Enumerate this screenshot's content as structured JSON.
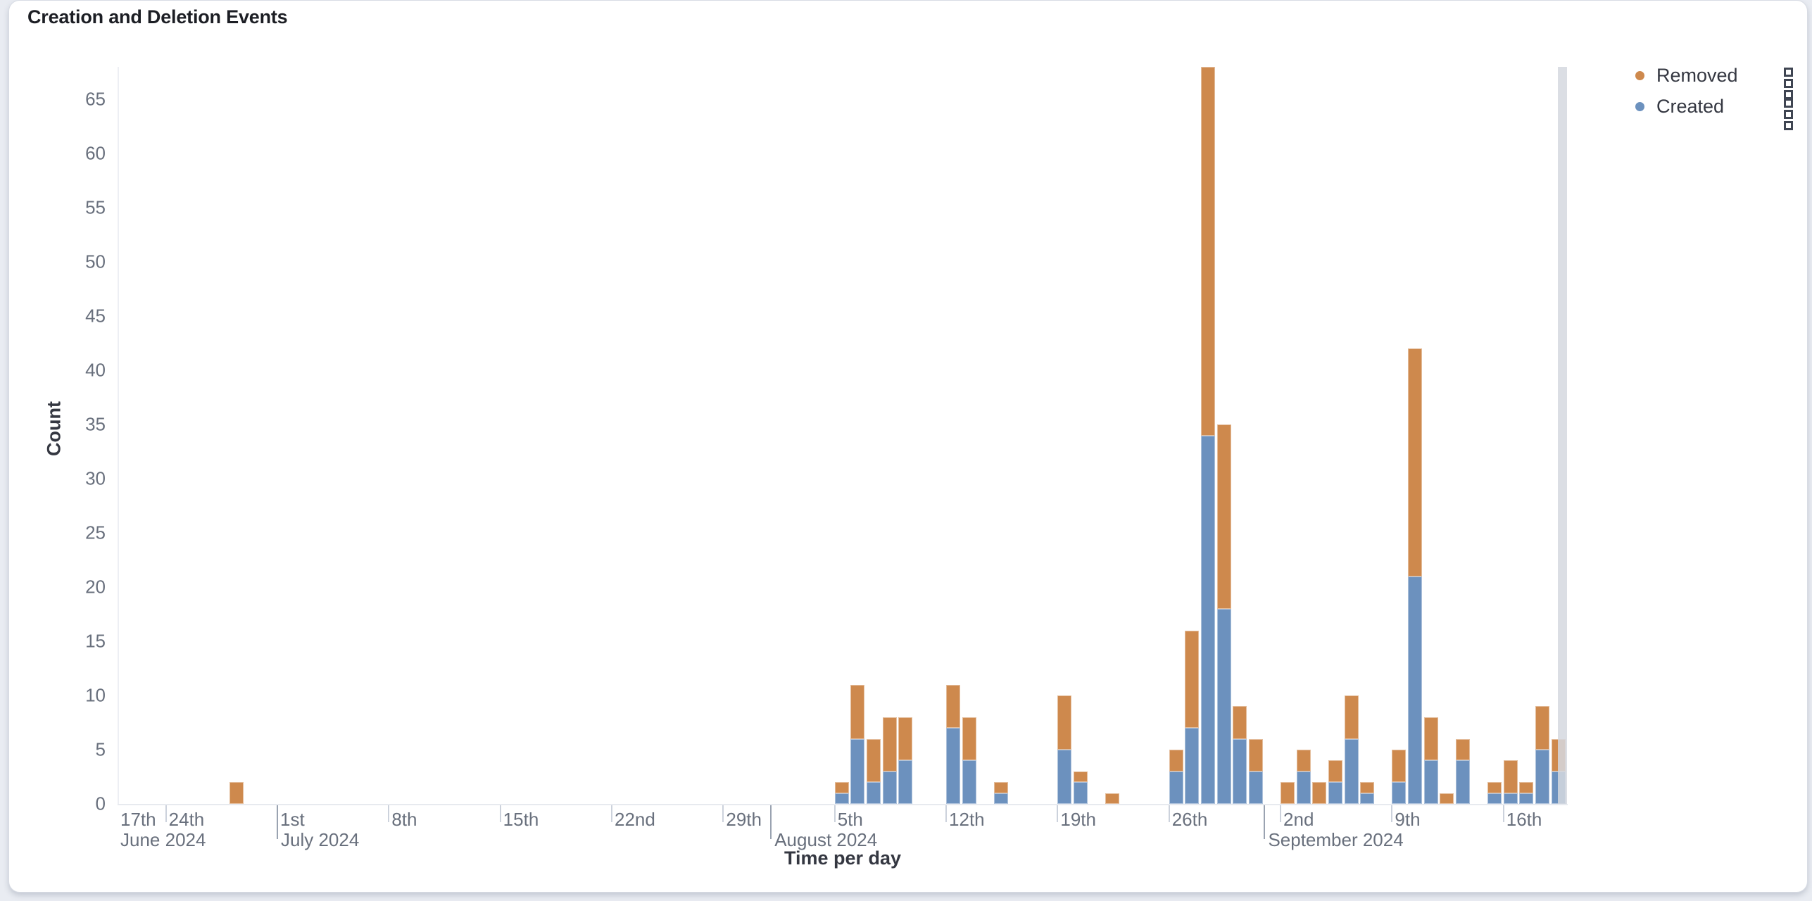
{
  "panel": {
    "title": "Creation and Deletion Events"
  },
  "legend": {
    "position": "right",
    "items": [
      {
        "label": "Removed",
        "color": "#CE894D"
      },
      {
        "label": "Created",
        "color": "#6C91BE"
      }
    ],
    "action_icon": "vertical-dots-icon"
  },
  "chart_data": {
    "type": "bar",
    "stacked": true,
    "title": "Creation and Deletion Events",
    "xlabel": "Time per day",
    "ylabel": "Count",
    "ylim": [
      0,
      68
    ],
    "y_ticks": [
      0,
      5,
      10,
      15,
      20,
      25,
      30,
      35,
      40,
      45,
      50,
      55,
      60,
      65
    ],
    "grid": false,
    "legend_position": "right",
    "series_order_bottom_to_top": [
      "Created",
      "Removed"
    ],
    "series_colors": {
      "Created": "#6C91BE",
      "Removed": "#CE894D"
    },
    "bars": [
      {
        "date": "2024-06-28",
        "created": 0,
        "removed": 2
      },
      {
        "date": "2024-08-05",
        "created": 1,
        "removed": 1
      },
      {
        "date": "2024-08-06",
        "created": 6,
        "removed": 5
      },
      {
        "date": "2024-08-07",
        "created": 2,
        "removed": 4
      },
      {
        "date": "2024-08-08",
        "created": 3,
        "removed": 5
      },
      {
        "date": "2024-08-09",
        "created": 4,
        "removed": 4
      },
      {
        "date": "2024-08-12",
        "created": 7,
        "removed": 4
      },
      {
        "date": "2024-08-13",
        "created": 4,
        "removed": 4
      },
      {
        "date": "2024-08-15",
        "created": 1,
        "removed": 1
      },
      {
        "date": "2024-08-19",
        "created": 5,
        "removed": 5
      },
      {
        "date": "2024-08-20",
        "created": 2,
        "removed": 1
      },
      {
        "date": "2024-08-22",
        "created": 0,
        "removed": 1
      },
      {
        "date": "2024-08-26",
        "created": 3,
        "removed": 2
      },
      {
        "date": "2024-08-27",
        "created": 7,
        "removed": 9
      },
      {
        "date": "2024-08-28",
        "created": 34,
        "removed": 34
      },
      {
        "date": "2024-08-29",
        "created": 18,
        "removed": 17
      },
      {
        "date": "2024-08-30",
        "created": 6,
        "removed": 3
      },
      {
        "date": "2024-08-31",
        "created": 3,
        "removed": 3
      },
      {
        "date": "2024-09-02",
        "created": 0,
        "removed": 2
      },
      {
        "date": "2024-09-03",
        "created": 3,
        "removed": 2
      },
      {
        "date": "2024-09-04",
        "created": 0,
        "removed": 2
      },
      {
        "date": "2024-09-05",
        "created": 2,
        "removed": 2
      },
      {
        "date": "2024-09-06",
        "created": 6,
        "removed": 4
      },
      {
        "date": "2024-09-07",
        "created": 1,
        "removed": 1
      },
      {
        "date": "2024-09-09",
        "created": 2,
        "removed": 3
      },
      {
        "date": "2024-09-10",
        "created": 21,
        "removed": 21
      },
      {
        "date": "2024-09-11",
        "created": 4,
        "removed": 4
      },
      {
        "date": "2024-09-12",
        "created": 0,
        "removed": 1
      },
      {
        "date": "2024-09-13",
        "created": 4,
        "removed": 2
      },
      {
        "date": "2024-09-15",
        "created": 1,
        "removed": 1
      },
      {
        "date": "2024-09-16",
        "created": 1,
        "removed": 3
      },
      {
        "date": "2024-09-17",
        "created": 1,
        "removed": 1
      },
      {
        "date": "2024-09-18",
        "created": 5,
        "removed": 4
      },
      {
        "date": "2024-09-19",
        "created": 3,
        "removed": 3
      }
    ],
    "x_week_ticks": [
      {
        "day_offset": -14,
        "label": "17th",
        "month_label": "June 2024"
      },
      {
        "day_offset": -7,
        "label": "24th"
      },
      {
        "day_offset": 0,
        "label": "1st"
      },
      {
        "day_offset": 7,
        "label": "8th"
      },
      {
        "day_offset": 14,
        "label": "15th"
      },
      {
        "day_offset": 21,
        "label": "22nd"
      },
      {
        "day_offset": 28,
        "label": "29th"
      },
      {
        "day_offset": 35,
        "label": "5th"
      },
      {
        "day_offset": 42,
        "label": "12th"
      },
      {
        "day_offset": 49,
        "label": "19th"
      },
      {
        "day_offset": 56,
        "label": "26th"
      },
      {
        "day_offset": 63,
        "label": "2nd"
      },
      {
        "day_offset": 70,
        "label": "9th"
      },
      {
        "day_offset": 77,
        "label": "16th"
      }
    ],
    "x_month_separators": [
      {
        "day_offset": 0,
        "label": "July 2024"
      },
      {
        "day_offset": 31,
        "label": "August 2024"
      },
      {
        "day_offset": 62,
        "label": "September 2024"
      }
    ],
    "partial_bucket_band": {
      "from_day_offset": 80.45,
      "to_day_offset": 81.03
    }
  }
}
